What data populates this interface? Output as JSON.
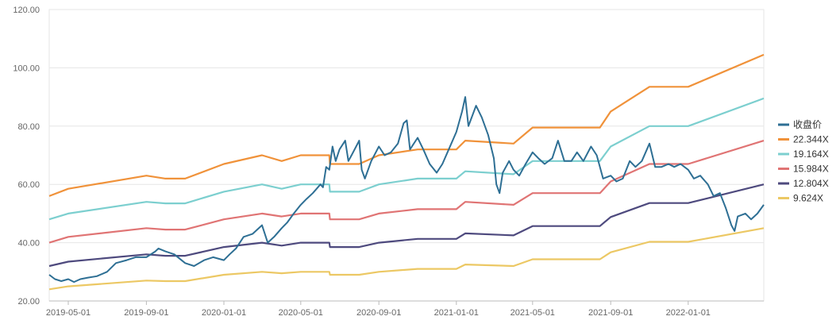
{
  "chart_data": {
    "type": "line",
    "x_range": [
      "2019-04-01",
      "2022-04-30"
    ],
    "ylim": [
      20,
      120
    ],
    "y_ticks": [
      20,
      40,
      60,
      80,
      100,
      120
    ],
    "y_tick_labels": [
      "20.00",
      "40.00",
      "60.00",
      "80.00",
      "100.00",
      "120.00"
    ],
    "x_ticks": [
      "2019-05-01",
      "2019-09-01",
      "2020-01-01",
      "2020-05-01",
      "2020-09-01",
      "2021-01-01",
      "2021-05-01",
      "2021-09-01",
      "2022-01-01"
    ],
    "grid": "horizontal",
    "legend_position": "right",
    "series": [
      {
        "name": "收盘价",
        "color": "#2e6f94",
        "points": [
          [
            "2019-04-01",
            29
          ],
          [
            "2019-04-10",
            27.5
          ],
          [
            "2019-04-20",
            26.8
          ],
          [
            "2019-05-01",
            27.5
          ],
          [
            "2019-05-10",
            26.5
          ],
          [
            "2019-05-20",
            27.5
          ],
          [
            "2019-06-01",
            28
          ],
          [
            "2019-06-15",
            28.5
          ],
          [
            "2019-07-01",
            30
          ],
          [
            "2019-07-15",
            33
          ],
          [
            "2019-08-01",
            34
          ],
          [
            "2019-08-15",
            35
          ],
          [
            "2019-09-01",
            35
          ],
          [
            "2019-09-15",
            37
          ],
          [
            "2019-09-20",
            38
          ],
          [
            "2019-10-01",
            37
          ],
          [
            "2019-10-15",
            36
          ],
          [
            "2019-11-01",
            33
          ],
          [
            "2019-11-15",
            32
          ],
          [
            "2019-12-01",
            34
          ],
          [
            "2019-12-15",
            35
          ],
          [
            "2020-01-01",
            34
          ],
          [
            "2020-01-10",
            36
          ],
          [
            "2020-01-20",
            38
          ],
          [
            "2020-02-01",
            42
          ],
          [
            "2020-02-15",
            43
          ],
          [
            "2020-03-01",
            46
          ],
          [
            "2020-03-10",
            40
          ],
          [
            "2020-03-20",
            42
          ],
          [
            "2020-04-01",
            45
          ],
          [
            "2020-04-10",
            47
          ],
          [
            "2020-04-20",
            50
          ],
          [
            "2020-05-01",
            53
          ],
          [
            "2020-05-10",
            55
          ],
          [
            "2020-05-20",
            57
          ],
          [
            "2020-06-01",
            60
          ],
          [
            "2020-06-05",
            59
          ],
          [
            "2020-06-10",
            66
          ],
          [
            "2020-06-15",
            65
          ],
          [
            "2020-06-20",
            73
          ],
          [
            "2020-06-25",
            68
          ],
          [
            "2020-07-01",
            72
          ],
          [
            "2020-07-10",
            75
          ],
          [
            "2020-07-15",
            68
          ],
          [
            "2020-07-20",
            70
          ],
          [
            "2020-08-01",
            75
          ],
          [
            "2020-08-05",
            65
          ],
          [
            "2020-08-10",
            62
          ],
          [
            "2020-08-20",
            68
          ],
          [
            "2020-09-01",
            73
          ],
          [
            "2020-09-10",
            70
          ],
          [
            "2020-09-20",
            71
          ],
          [
            "2020-10-01",
            74
          ],
          [
            "2020-10-10",
            81
          ],
          [
            "2020-10-15",
            82
          ],
          [
            "2020-10-20",
            72
          ],
          [
            "2020-11-01",
            76
          ],
          [
            "2020-11-10",
            72
          ],
          [
            "2020-11-20",
            67
          ],
          [
            "2020-12-01",
            64
          ],
          [
            "2020-12-10",
            67
          ],
          [
            "2020-12-20",
            72
          ],
          [
            "2021-01-01",
            78
          ],
          [
            "2021-01-10",
            85
          ],
          [
            "2021-01-15",
            90
          ],
          [
            "2021-01-20",
            80
          ],
          [
            "2021-02-01",
            87
          ],
          [
            "2021-02-10",
            83
          ],
          [
            "2021-02-20",
            77
          ],
          [
            "2021-03-01",
            69
          ],
          [
            "2021-03-05",
            60
          ],
          [
            "2021-03-10",
            57
          ],
          [
            "2021-03-15",
            64
          ],
          [
            "2021-03-25",
            68
          ],
          [
            "2021-04-01",
            65
          ],
          [
            "2021-04-10",
            63
          ],
          [
            "2021-04-20",
            67
          ],
          [
            "2021-05-01",
            71
          ],
          [
            "2021-05-10",
            69
          ],
          [
            "2021-05-20",
            67
          ],
          [
            "2021-06-01",
            69
          ],
          [
            "2021-06-10",
            75
          ],
          [
            "2021-06-20",
            68
          ],
          [
            "2021-07-01",
            68
          ],
          [
            "2021-07-10",
            71
          ],
          [
            "2021-07-20",
            68
          ],
          [
            "2021-08-01",
            73
          ],
          [
            "2021-08-10",
            70
          ],
          [
            "2021-08-20",
            62
          ],
          [
            "2021-09-01",
            63
          ],
          [
            "2021-09-10",
            61
          ],
          [
            "2021-09-20",
            62
          ],
          [
            "2021-10-01",
            68
          ],
          [
            "2021-10-10",
            66
          ],
          [
            "2021-10-20",
            68
          ],
          [
            "2021-11-01",
            74
          ],
          [
            "2021-11-10",
            66
          ],
          [
            "2021-11-20",
            66
          ],
          [
            "2021-12-01",
            67
          ],
          [
            "2021-12-10",
            66
          ],
          [
            "2021-12-20",
            67
          ],
          [
            "2022-01-01",
            65
          ],
          [
            "2022-01-10",
            62
          ],
          [
            "2022-01-20",
            63
          ],
          [
            "2022-02-01",
            60
          ],
          [
            "2022-02-10",
            56
          ],
          [
            "2022-02-20",
            57
          ],
          [
            "2022-03-01",
            52
          ],
          [
            "2022-03-10",
            46
          ],
          [
            "2022-03-15",
            44
          ],
          [
            "2022-03-20",
            49
          ],
          [
            "2022-04-01",
            50
          ],
          [
            "2022-04-10",
            48
          ],
          [
            "2022-04-20",
            50
          ],
          [
            "2022-04-30",
            53
          ]
        ]
      },
      {
        "name": "22.344X",
        "color": "#f0923a",
        "points": [
          [
            "2019-04-01",
            56
          ],
          [
            "2019-05-01",
            58.5
          ],
          [
            "2019-09-01",
            63
          ],
          [
            "2019-10-01",
            62
          ],
          [
            "2019-11-01",
            62
          ],
          [
            "2020-01-01",
            67
          ],
          [
            "2020-03-01",
            70
          ],
          [
            "2020-04-01",
            68
          ],
          [
            "2020-05-01",
            70
          ],
          [
            "2020-06-15",
            70
          ],
          [
            "2020-06-16",
            67
          ],
          [
            "2020-08-01",
            67
          ],
          [
            "2020-09-01",
            70
          ],
          [
            "2020-11-01",
            72
          ],
          [
            "2021-01-01",
            72
          ],
          [
            "2021-01-15",
            75
          ],
          [
            "2021-04-01",
            74
          ],
          [
            "2021-05-01",
            79.5
          ],
          [
            "2021-08-15",
            79.5
          ],
          [
            "2021-09-01",
            85
          ],
          [
            "2021-11-01",
            93.5
          ],
          [
            "2022-01-01",
            93.5
          ],
          [
            "2022-04-30",
            104.5
          ]
        ]
      },
      {
        "name": "19.164X",
        "color": "#7ccfcf",
        "points": [
          [
            "2019-04-01",
            48
          ],
          [
            "2019-05-01",
            50
          ],
          [
            "2019-09-01",
            54
          ],
          [
            "2019-10-01",
            53.5
          ],
          [
            "2019-11-01",
            53.5
          ],
          [
            "2020-01-01",
            57.5
          ],
          [
            "2020-03-01",
            60
          ],
          [
            "2020-04-01",
            58.5
          ],
          [
            "2020-05-01",
            60
          ],
          [
            "2020-06-15",
            60
          ],
          [
            "2020-06-16",
            57.5
          ],
          [
            "2020-08-01",
            57.5
          ],
          [
            "2020-09-01",
            60
          ],
          [
            "2020-11-01",
            62
          ],
          [
            "2021-01-01",
            62
          ],
          [
            "2021-01-15",
            64.5
          ],
          [
            "2021-04-01",
            63.5
          ],
          [
            "2021-05-01",
            68
          ],
          [
            "2021-08-15",
            68
          ],
          [
            "2021-09-01",
            73
          ],
          [
            "2021-11-01",
            80
          ],
          [
            "2022-01-01",
            80
          ],
          [
            "2022-04-30",
            89.5
          ]
        ]
      },
      {
        "name": "15.984X",
        "color": "#e07474",
        "points": [
          [
            "2019-04-01",
            40
          ],
          [
            "2019-05-01",
            42
          ],
          [
            "2019-09-01",
            45
          ],
          [
            "2019-10-01",
            44.5
          ],
          [
            "2019-11-01",
            44.5
          ],
          [
            "2020-01-01",
            48
          ],
          [
            "2020-03-01",
            50
          ],
          [
            "2020-04-01",
            49
          ],
          [
            "2020-05-01",
            50
          ],
          [
            "2020-06-15",
            50
          ],
          [
            "2020-06-16",
            48
          ],
          [
            "2020-08-01",
            48
          ],
          [
            "2020-09-01",
            50
          ],
          [
            "2020-11-01",
            51.5
          ],
          [
            "2021-01-01",
            51.5
          ],
          [
            "2021-01-15",
            54
          ],
          [
            "2021-04-01",
            53
          ],
          [
            "2021-05-01",
            57
          ],
          [
            "2021-08-15",
            57
          ],
          [
            "2021-09-01",
            61
          ],
          [
            "2021-11-01",
            67
          ],
          [
            "2022-01-01",
            67
          ],
          [
            "2022-04-30",
            75
          ]
        ]
      },
      {
        "name": "12.804X",
        "color": "#4e4a7e",
        "points": [
          [
            "2019-04-01",
            32
          ],
          [
            "2019-05-01",
            33.5
          ],
          [
            "2019-09-01",
            36
          ],
          [
            "2019-10-01",
            35.5
          ],
          [
            "2019-11-01",
            35.5
          ],
          [
            "2020-01-01",
            38.5
          ],
          [
            "2020-03-01",
            40
          ],
          [
            "2020-04-01",
            39
          ],
          [
            "2020-05-01",
            40
          ],
          [
            "2020-06-15",
            40
          ],
          [
            "2020-06-16",
            38.5
          ],
          [
            "2020-08-01",
            38.5
          ],
          [
            "2020-09-01",
            40
          ],
          [
            "2020-11-01",
            41.3
          ],
          [
            "2021-01-01",
            41.3
          ],
          [
            "2021-01-15",
            43.2
          ],
          [
            "2021-04-01",
            42.5
          ],
          [
            "2021-05-01",
            45.7
          ],
          [
            "2021-08-15",
            45.7
          ],
          [
            "2021-09-01",
            48.8
          ],
          [
            "2021-11-01",
            53.6
          ],
          [
            "2022-01-01",
            53.6
          ],
          [
            "2022-04-30",
            60
          ]
        ]
      },
      {
        "name": "9.624X",
        "color": "#ecc864",
        "points": [
          [
            "2019-04-01",
            24
          ],
          [
            "2019-05-01",
            25
          ],
          [
            "2019-09-01",
            27
          ],
          [
            "2019-10-01",
            26.8
          ],
          [
            "2019-11-01",
            26.8
          ],
          [
            "2020-01-01",
            29
          ],
          [
            "2020-03-01",
            30
          ],
          [
            "2020-04-01",
            29.5
          ],
          [
            "2020-05-01",
            30
          ],
          [
            "2020-06-15",
            30
          ],
          [
            "2020-06-16",
            29
          ],
          [
            "2020-08-01",
            29
          ],
          [
            "2020-09-01",
            30
          ],
          [
            "2020-11-01",
            31
          ],
          [
            "2021-01-01",
            31
          ],
          [
            "2021-01-15",
            32.5
          ],
          [
            "2021-04-01",
            32
          ],
          [
            "2021-05-01",
            34.3
          ],
          [
            "2021-08-15",
            34.3
          ],
          [
            "2021-09-01",
            36.7
          ],
          [
            "2021-11-01",
            40.3
          ],
          [
            "2022-01-01",
            40.3
          ],
          [
            "2022-04-30",
            45
          ]
        ]
      }
    ]
  }
}
